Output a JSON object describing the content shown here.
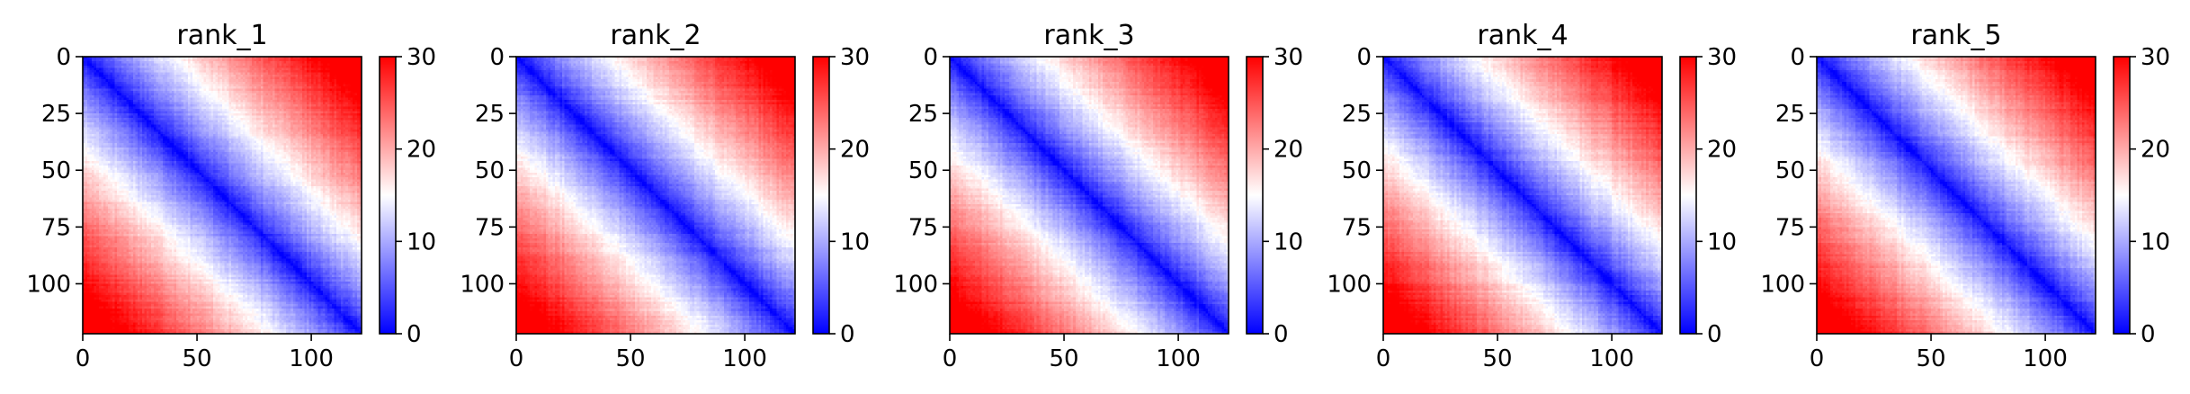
{
  "chart_data": [
    {
      "type": "heatmap",
      "title": "rank_1",
      "matrix_size": 122,
      "xlim": [
        0,
        122
      ],
      "ylim": [
        122,
        0
      ],
      "x_ticks": [
        0,
        50,
        100
      ],
      "y_ticks": [
        0,
        25,
        50,
        75,
        100
      ],
      "colorbar": {
        "min": 0,
        "max": 30,
        "ticks": [
          0,
          10,
          20,
          30
        ],
        "colors": [
          "#0000ff",
          "#ffffff",
          "#ff0000"
        ]
      },
      "pattern": {
        "corner_value": 30,
        "diagonal_value": 0
      }
    },
    {
      "type": "heatmap",
      "title": "rank_2",
      "matrix_size": 122,
      "xlim": [
        0,
        122
      ],
      "ylim": [
        122,
        0
      ],
      "x_ticks": [
        0,
        50,
        100
      ],
      "y_ticks": [
        0,
        25,
        50,
        75,
        100
      ],
      "colorbar": {
        "min": 0,
        "max": 30,
        "ticks": [
          0,
          10,
          20,
          30
        ],
        "colors": [
          "#0000ff",
          "#ffffff",
          "#ff0000"
        ]
      },
      "pattern": {
        "corner_value": 30,
        "diagonal_value": 0
      }
    },
    {
      "type": "heatmap",
      "title": "rank_3",
      "matrix_size": 122,
      "xlim": [
        0,
        122
      ],
      "ylim": [
        122,
        0
      ],
      "x_ticks": [
        0,
        50,
        100
      ],
      "y_ticks": [
        0,
        25,
        50,
        75,
        100
      ],
      "colorbar": {
        "min": 0,
        "max": 30,
        "ticks": [
          0,
          10,
          20,
          30
        ],
        "colors": [
          "#0000ff",
          "#ffffff",
          "#ff0000"
        ]
      },
      "pattern": {
        "corner_value": 30,
        "diagonal_value": 0
      }
    },
    {
      "type": "heatmap",
      "title": "rank_4",
      "matrix_size": 122,
      "xlim": [
        0,
        122
      ],
      "ylim": [
        122,
        0
      ],
      "x_ticks": [
        0,
        50,
        100
      ],
      "y_ticks": [
        0,
        25,
        50,
        75,
        100
      ],
      "colorbar": {
        "min": 0,
        "max": 30,
        "ticks": [
          0,
          10,
          20,
          30
        ],
        "colors": [
          "#0000ff",
          "#ffffff",
          "#ff0000"
        ]
      },
      "pattern": {
        "corner_value": 30,
        "diagonal_value": 0
      }
    },
    {
      "type": "heatmap",
      "title": "rank_5",
      "matrix_size": 122,
      "xlim": [
        0,
        122
      ],
      "ylim": [
        122,
        0
      ],
      "x_ticks": [
        0,
        50,
        100
      ],
      "y_ticks": [
        0,
        25,
        50,
        75,
        100
      ],
      "colorbar": {
        "min": 0,
        "max": 30,
        "ticks": [
          0,
          10,
          20,
          30
        ],
        "colors": [
          "#0000ff",
          "#ffffff",
          "#ff0000"
        ]
      },
      "pattern": {
        "corner_value": 30,
        "diagonal_value": 0
      }
    }
  ]
}
